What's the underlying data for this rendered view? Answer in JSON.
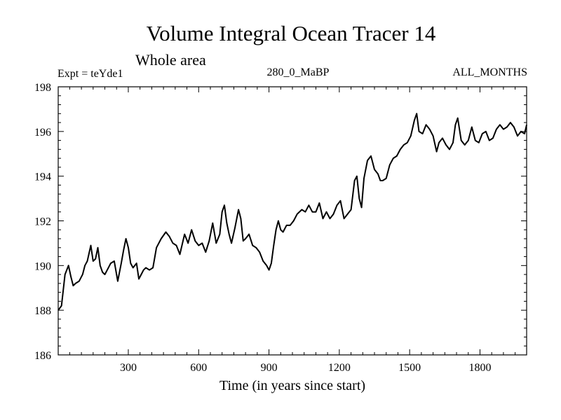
{
  "chart_data": {
    "type": "line",
    "title": "Volume Integral Ocean Tracer 14",
    "subtitle": "Whole area",
    "left_label": "Expt = teYde1",
    "center_label": "280_0_MaBP",
    "right_label": "ALL_MONTHS",
    "xlabel": "Time (in years since start)",
    "ylabel": "",
    "xlim": [
      1,
      1999
    ],
    "ylim": [
      186,
      198
    ],
    "x_ticks": [
      300,
      600,
      900,
      1200,
      1500,
      1800
    ],
    "x_tick_labels": [
      "300",
      "600",
      "900",
      "1200",
      "1500",
      "1800"
    ],
    "y_ticks": [
      186,
      188,
      190,
      192,
      194,
      196,
      198
    ],
    "y_tick_labels": [
      "186",
      "188",
      "190",
      "192",
      "194",
      "196",
      "198"
    ],
    "grid": false,
    "series": [
      {
        "name": "Volume Integral Ocean Tracer 14",
        "color": "#000000",
        "x": [
          1,
          15,
          30,
          45,
          55,
          65,
          75,
          90,
          105,
          115,
          125,
          140,
          150,
          160,
          170,
          180,
          190,
          200,
          210,
          225,
          240,
          255,
          270,
          280,
          290,
          300,
          310,
          320,
          335,
          345,
          355,
          365,
          375,
          390,
          405,
          420,
          440,
          460,
          475,
          490,
          505,
          520,
          540,
          555,
          570,
          585,
          600,
          615,
          630,
          645,
          660,
          675,
          690,
          700,
          710,
          720,
          730,
          740,
          755,
          770,
          780,
          790,
          800,
          815,
          830,
          845,
          860,
          875,
          890,
          900,
          910,
          920,
          930,
          940,
          950,
          960,
          975,
          990,
          1005,
          1020,
          1040,
          1055,
          1070,
          1085,
          1100,
          1115,
          1130,
          1145,
          1160,
          1175,
          1190,
          1205,
          1220,
          1235,
          1250,
          1265,
          1275,
          1285,
          1295,
          1305,
          1320,
          1335,
          1350,
          1365,
          1375,
          1385,
          1400,
          1415,
          1430,
          1445,
          1460,
          1475,
          1490,
          1505,
          1520,
          1530,
          1540,
          1555,
          1570,
          1585,
          1600,
          1615,
          1625,
          1640,
          1655,
          1670,
          1685,
          1695,
          1705,
          1720,
          1735,
          1750,
          1765,
          1780,
          1795,
          1810,
          1825,
          1840,
          1855,
          1870,
          1885,
          1900,
          1915,
          1930,
          1945,
          1960,
          1975,
          1990,
          1999
        ],
        "values": [
          188.0,
          188.2,
          189.6,
          190.0,
          189.5,
          189.1,
          189.2,
          189.3,
          189.6,
          190.0,
          190.2,
          190.9,
          190.2,
          190.3,
          190.8,
          190.0,
          189.7,
          189.6,
          189.8,
          190.1,
          190.2,
          189.3,
          190.1,
          190.7,
          191.2,
          190.8,
          190.1,
          189.9,
          190.1,
          189.4,
          189.6,
          189.8,
          189.9,
          189.8,
          189.9,
          190.8,
          191.2,
          191.5,
          191.3,
          191.0,
          190.9,
          190.5,
          191.4,
          191.0,
          191.6,
          191.1,
          190.9,
          191.0,
          190.6,
          191.1,
          191.9,
          191.0,
          191.4,
          192.4,
          192.7,
          191.9,
          191.4,
          191.0,
          191.7,
          192.5,
          192.1,
          191.1,
          191.2,
          191.4,
          190.9,
          190.8,
          190.6,
          190.2,
          190.0,
          189.8,
          190.1,
          190.9,
          191.6,
          192.0,
          191.6,
          191.5,
          191.8,
          191.8,
          192.0,
          192.3,
          192.5,
          192.4,
          192.7,
          192.4,
          192.4,
          192.8,
          192.1,
          192.4,
          192.1,
          192.3,
          192.7,
          192.9,
          192.1,
          192.3,
          192.5,
          193.8,
          194.0,
          193.0,
          192.6,
          193.9,
          194.7,
          194.9,
          194.3,
          194.1,
          193.8,
          193.8,
          193.9,
          194.5,
          194.8,
          194.9,
          195.2,
          195.4,
          195.5,
          195.8,
          196.5,
          196.8,
          196.0,
          195.9,
          196.3,
          196.1,
          195.8,
          195.1,
          195.5,
          195.7,
          195.4,
          195.2,
          195.5,
          196.3,
          196.6,
          195.6,
          195.4,
          195.6,
          196.2,
          195.6,
          195.5,
          195.9,
          196.0,
          195.6,
          195.7,
          196.1,
          196.3,
          196.1,
          196.2,
          196.4,
          196.2,
          195.8,
          196.0,
          195.9,
          196.3
        ]
      }
    ]
  }
}
